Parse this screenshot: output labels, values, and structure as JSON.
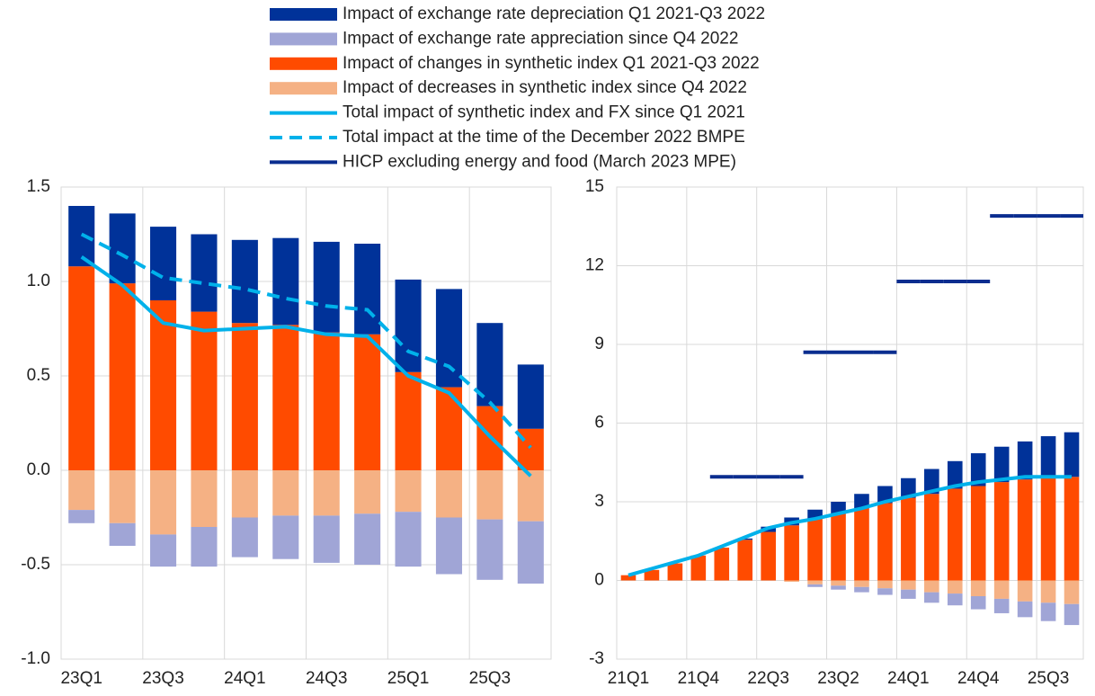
{
  "chart_data": [
    {
      "type": "bar",
      "categories": [
        "23Q1",
        null,
        "23Q3",
        null,
        "24Q1",
        null,
        "24Q3",
        null,
        "25Q1",
        null,
        "25Q3",
        null
      ],
      "ylim": [
        -1,
        1.5
      ],
      "yticks": [
        {
          "value": -1,
          "label": "-1.0"
        },
        -0.5,
        {
          "value": 0,
          "label": "0.0"
        },
        0.5,
        {
          "value": 1,
          "label": "1.0"
        },
        1.5
      ],
      "grid": true,
      "series": [
        {
          "name": "Impact of exchange rate depreciation Q1 2021-Q3 2022",
          "type": "bar",
          "color": "#003299",
          "values": [
            0.32,
            0.37,
            0.39,
            0.41,
            0.44,
            0.46,
            0.48,
            0.48,
            0.49,
            0.52,
            0.44,
            0.34
          ]
        },
        {
          "name": "Impact of exchange rate appreciation since Q4 2022",
          "type": "bar",
          "color": "#a0a5d6",
          "values": [
            -0.07,
            -0.12,
            -0.17,
            -0.21,
            -0.21,
            -0.23,
            -0.25,
            -0.27,
            -0.29,
            -0.3,
            -0.32,
            -0.33
          ]
        },
        {
          "name": "Impact of changes in synthetic index Q1 2021-Q3 2022",
          "type": "bar",
          "color": "#ff4b00",
          "values": [
            1.08,
            0.99,
            0.9,
            0.84,
            0.78,
            0.77,
            0.73,
            0.72,
            0.52,
            0.44,
            0.34,
            0.22
          ]
        },
        {
          "name": "Impact of decreases in synthetic index since Q4 2022",
          "type": "bar",
          "color": "#f5b184",
          "values": [
            -0.21,
            -0.28,
            -0.34,
            -0.3,
            -0.25,
            -0.24,
            -0.24,
            -0.23,
            -0.22,
            -0.25,
            -0.26,
            -0.27
          ]
        },
        {
          "name": "Total impact of synthetic index and FX since Q1 2021",
          "type": "line",
          "color": "#00b1ea",
          "values": [
            1.13,
            0.98,
            0.78,
            0.74,
            0.75,
            0.76,
            0.72,
            0.71,
            0.5,
            0.41,
            0.18,
            -0.03
          ]
        },
        {
          "name": "Total impact at the time of the December 2022 BMPE",
          "type": "line",
          "dashed": true,
          "color": "#00b1ea",
          "values": [
            1.25,
            1.14,
            1.02,
            0.99,
            0.96,
            0.91,
            0.87,
            0.85,
            0.63,
            0.55,
            0.36,
            0.12
          ]
        }
      ]
    },
    {
      "type": "bar",
      "categories": [
        "21Q1",
        null,
        null,
        "21Q4",
        null,
        null,
        "22Q3",
        null,
        null,
        "23Q2",
        null,
        null,
        "24Q1",
        null,
        null,
        "24Q4",
        null,
        null,
        "25Q3",
        null
      ],
      "ylim": [
        -3,
        15
      ],
      "yticks": [
        -3,
        0,
        3,
        6,
        9,
        12,
        15
      ],
      "grid": true,
      "series": [
        {
          "type": "bar",
          "color": "#003299",
          "values": [
            0,
            0,
            0,
            0,
            0,
            0.05,
            0.2,
            0.3,
            0.35,
            0.45,
            0.55,
            0.65,
            0.75,
            0.95,
            1.05,
            1.25,
            1.35,
            1.45,
            1.6,
            1.7
          ]
        },
        {
          "type": "bar",
          "color": "#a0a5d6",
          "values": [
            0,
            0,
            0,
            0,
            0,
            0,
            0,
            0,
            -0.1,
            -0.15,
            -0.2,
            -0.25,
            -0.35,
            -0.4,
            -0.45,
            -0.5,
            -0.55,
            -0.6,
            -0.7,
            -0.8
          ]
        },
        {
          "type": "bar",
          "color": "#ff4b00",
          "values": [
            0.2,
            0.4,
            0.65,
            0.95,
            1.25,
            1.55,
            1.85,
            2.1,
            2.35,
            2.55,
            2.75,
            2.95,
            3.15,
            3.3,
            3.5,
            3.6,
            3.75,
            3.85,
            3.9,
            3.95
          ]
        },
        {
          "type": "bar",
          "color": "#f5b184",
          "values": [
            0,
            0,
            0,
            0,
            0,
            0,
            0,
            -0.05,
            -0.15,
            -0.2,
            -0.25,
            -0.3,
            -0.35,
            -0.45,
            -0.5,
            -0.6,
            -0.7,
            -0.8,
            -0.85,
            -0.9
          ]
        },
        {
          "type": "line",
          "color": "#00b1ea",
          "values": [
            0.2,
            0.45,
            0.7,
            0.95,
            1.3,
            1.65,
            2.0,
            2.2,
            2.35,
            2.55,
            2.75,
            3.0,
            3.2,
            3.4,
            3.6,
            3.75,
            3.85,
            3.95,
            3.95,
            3.95
          ]
        },
        {
          "name": "HICP excluding energy and food (March 2023 MPE)",
          "type": "step",
          "color": "#0a2d8f",
          "values": [
            null,
            null,
            null,
            null,
            3.95,
            3.95,
            3.95,
            3.95,
            8.7,
            8.7,
            8.7,
            8.7,
            11.4,
            11.4,
            11.4,
            11.4,
            13.9,
            13.9,
            13.9,
            13.9
          ]
        }
      ]
    }
  ]
}
